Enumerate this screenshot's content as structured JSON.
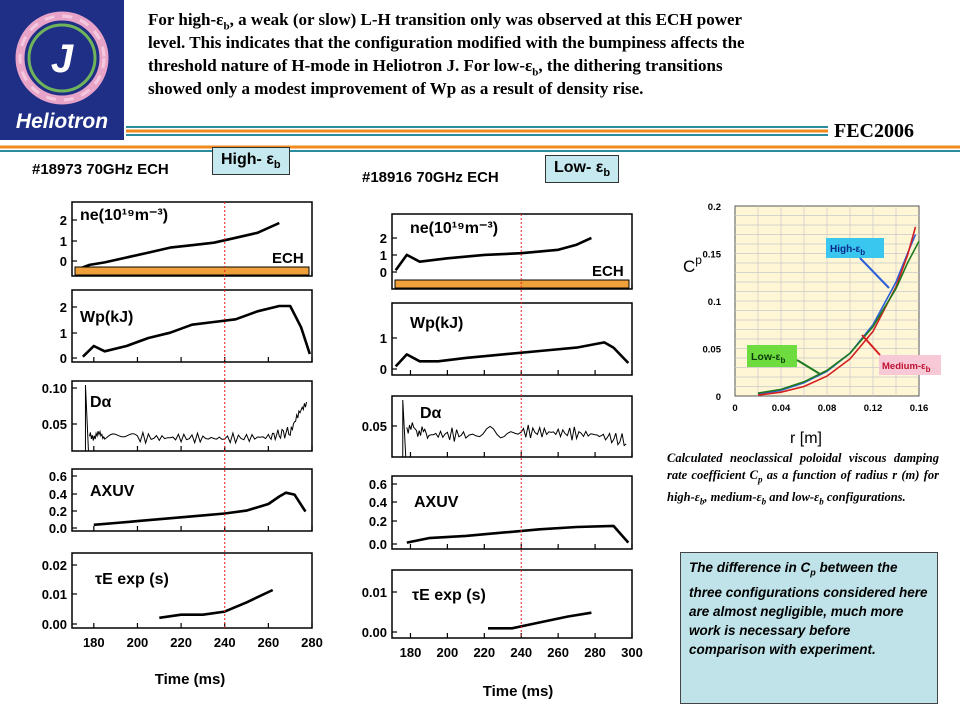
{
  "logo": {
    "letter": "J",
    "name": "Heliotron"
  },
  "header": {
    "line1": "For high-εb, a weak (or slow) L-H transition only was observed at this ECH power",
    "line2": "level. This indicates that the configuration modified with the bumpiness affects the",
    "line3": "threshold nature of H-mode in Heliotron J.  For low-εb, the dithering transitions",
    "line4": "showed only a modest improvement of Wp as a result of density rise.",
    "l1a": "For high-ε",
    "l1b": "b",
    "l1c": ", a weak (or slow) L-H transition only was observed at this ECH power",
    "l3a": "threshold nature of H-mode in Heliotron J.  For low-ε",
    "l3b": "b",
    "l3c": ", the dithering transitions"
  },
  "conference": "FEC2006",
  "colors": {
    "logo_bg": "#1f2f86",
    "stripe_orange": "#f28a1e",
    "stripe_teal": "#2a8c9c",
    "ech_bar": "#f0a03a",
    "high": "#2a5fd8",
    "medium": "#d42020",
    "low": "#1f7a1f",
    "label_box": "#c6e9ef",
    "note_box": "#bfe3e8",
    "cp_bg": "#fff6d6"
  },
  "left_panel": {
    "title": "#18973 70GHz   ECH",
    "tag_main": "High- ε",
    "tag_sub": "b",
    "ech_label": "ECH",
    "xlabel": "Time  (ms)",
    "xticks": [
      "180",
      "200",
      "220",
      "240",
      "260",
      "280"
    ],
    "signals": [
      {
        "label": "ne(10¹⁹m⁻³)",
        "yticks": [
          "2",
          "1",
          "0"
        ]
      },
      {
        "label": "Wp(kJ)",
        "yticks": [
          "2",
          "1",
          "0"
        ]
      },
      {
        "label": "Dα",
        "yticks": [
          "0.10",
          "0.05"
        ]
      },
      {
        "label": "AXUV",
        "yticks": [
          "0.6",
          "0.4",
          "0.2",
          "0.0"
        ]
      },
      {
        "label": "τE exp (s)",
        "yticks": [
          "0.02",
          "0.01",
          "0.00"
        ]
      }
    ]
  },
  "mid_panel": {
    "title": "#18916 70GHz   ECH",
    "tag_main": "Low- ε",
    "tag_sub": "b",
    "ech_label": "ECH",
    "xlabel": "Time (ms)",
    "xticks": [
      "180",
      "200",
      "220",
      "240",
      "260",
      "280",
      "300"
    ],
    "signals": [
      {
        "label": "ne(10¹⁹m⁻³)",
        "yticks": [
          "2",
          "1",
          "0"
        ]
      },
      {
        "label": "Wp(kJ)",
        "yticks": [
          "1",
          "0"
        ]
      },
      {
        "label": "Dα",
        "yticks": [
          "0.05"
        ]
      },
      {
        "label": "AXUV",
        "yticks": [
          "0.6",
          "0.4",
          "0.2",
          "0.0"
        ]
      },
      {
        "label": "τE exp (s)",
        "yticks": [
          "0.01",
          "0.00"
        ]
      }
    ]
  },
  "chart_data": [
    {
      "type": "line",
      "title": "",
      "xlabel": "r  [m]",
      "ylabel": "Cp",
      "xlim": [
        0,
        0.16
      ],
      "ylim": [
        0,
        0.2
      ],
      "xticks": [
        0,
        0.04,
        0.08,
        0.12,
        0.16
      ],
      "xtick_labels": [
        "0",
        "0.04",
        "0.08",
        "0.12",
        "0.16"
      ],
      "yticks": [
        0,
        0.05,
        0.1,
        0.15,
        0.2
      ],
      "ytick_labels": [
        "0",
        "0.05",
        "0.1",
        "0.15",
        "0.2"
      ],
      "grid": true,
      "series": [
        {
          "name": "High-εb",
          "color": "#2a5fd8",
          "x": [
            0.02,
            0.04,
            0.06,
            0.08,
            0.1,
            0.12,
            0.14,
            0.15,
            0.157
          ],
          "y": [
            0.002,
            0.006,
            0.014,
            0.026,
            0.045,
            0.075,
            0.12,
            0.15,
            0.17
          ]
        },
        {
          "name": "Medium-εb",
          "color": "#d42020",
          "x": [
            0.02,
            0.04,
            0.06,
            0.08,
            0.1,
            0.12,
            0.14,
            0.15,
            0.157
          ],
          "y": [
            0.001,
            0.004,
            0.01,
            0.021,
            0.039,
            0.068,
            0.115,
            0.148,
            0.178
          ]
        },
        {
          "name": "Low-εb",
          "color": "#1f7a1f",
          "x": [
            0.02,
            0.04,
            0.06,
            0.08,
            0.1,
            0.12,
            0.14,
            0.15,
            0.16
          ],
          "y": [
            0.003,
            0.007,
            0.015,
            0.027,
            0.045,
            0.073,
            0.113,
            0.14,
            0.163
          ]
        }
      ]
    },
    {
      "type": "line",
      "title": "#18973 70GHz   ECH",
      "xlabel": "Time  (ms)",
      "xlim": [
        170,
        280
      ],
      "marker_time": 240,
      "series": [
        {
          "name": "ne",
          "x": [
            172,
            178,
            185,
            195,
            205,
            215,
            225,
            235,
            245,
            255,
            265
          ],
          "y": [
            0.1,
            0.3,
            0.4,
            0.6,
            0.8,
            1.0,
            1.1,
            1.2,
            1.4,
            1.6,
            2.0
          ]
        },
        {
          "name": "Wp",
          "x": [
            175,
            180,
            185,
            195,
            205,
            215,
            225,
            235,
            245,
            255,
            265,
            270,
            275,
            279
          ],
          "y": [
            0.1,
            0.5,
            0.3,
            0.5,
            0.8,
            1.0,
            1.3,
            1.4,
            1.5,
            1.8,
            2.0,
            2.0,
            1.2,
            0.2
          ]
        },
        {
          "name": "Dα",
          "x": [
            178,
            185,
            200,
            220,
            240,
            260,
            270,
            278
          ],
          "y": [
            0.04,
            0.04,
            0.037,
            0.037,
            0.036,
            0.038,
            0.045,
            0.085
          ]
        },
        {
          "name": "AXUV",
          "x": [
            180,
            190,
            200,
            210,
            220,
            230,
            240,
            250,
            260,
            265,
            268,
            272,
            277
          ],
          "y": [
            0.06,
            0.08,
            0.1,
            0.12,
            0.14,
            0.16,
            0.18,
            0.21,
            0.28,
            0.36,
            0.4,
            0.38,
            0.2
          ]
        },
        {
          "name": "τE exp",
          "x": [
            210,
            220,
            230,
            240,
            250,
            262
          ],
          "y": [
            0.002,
            0.003,
            0.003,
            0.004,
            0.007,
            0.011
          ]
        }
      ]
    },
    {
      "type": "line",
      "title": "#18916 70GHz   ECH",
      "xlabel": "Time (ms)",
      "xlim": [
        170,
        300
      ],
      "marker_time": 240,
      "series": [
        {
          "name": "ne",
          "x": [
            172,
            178,
            185,
            200,
            220,
            240,
            260,
            270,
            278
          ],
          "y": [
            0.1,
            1.0,
            0.6,
            0.8,
            1.0,
            1.1,
            1.3,
            1.6,
            2.0
          ]
        },
        {
          "name": "Wp",
          "x": [
            172,
            178,
            185,
            195,
            210,
            230,
            250,
            270,
            285,
            290,
            298
          ],
          "y": [
            0.05,
            0.4,
            0.2,
            0.2,
            0.3,
            0.4,
            0.5,
            0.6,
            0.75,
            0.6,
            0.15
          ]
        },
        {
          "name": "Dα",
          "x": [
            178,
            190,
            210,
            240,
            260,
            280,
            298
          ],
          "y": [
            0.04,
            0.032,
            0.032,
            0.035,
            0.034,
            0.032,
            0.025
          ]
        },
        {
          "name": "AXUV",
          "x": [
            178,
            190,
            210,
            230,
            250,
            270,
            290,
            298
          ],
          "y": [
            0.05,
            0.09,
            0.11,
            0.14,
            0.17,
            0.19,
            0.2,
            0.05
          ]
        },
        {
          "name": "τE exp",
          "x": [
            222,
            235,
            245,
            255,
            265,
            278
          ],
          "y": [
            0.001,
            0.001,
            0.002,
            0.003,
            0.004,
            0.005
          ]
        }
      ]
    }
  ],
  "cp_chart": {
    "ylabel_main": "C",
    "ylabel_sub": "p",
    "xlabel": "r  [m]",
    "legend_high": "High-ε",
    "legend_medium": "Medium-ε",
    "legend_low": "Low-ε",
    "legend_sub": "b"
  },
  "caption": {
    "t1": "Calculated neoclassical poloidal viscous damping rate coefficient C",
    "t2": "p",
    "t3": " as a function of radius r (m) for high-ε",
    "t4": "b",
    "t5": ", medium-ε",
    "t6": "b",
    "t7": " and low-ε",
    "t8": "b",
    "t9": " configurations."
  },
  "note": {
    "t1": "The difference in C",
    "t2": "p",
    "t3": " between the three configurations considered here are almost negligible, much more work is necessary before comparison with experiment."
  }
}
